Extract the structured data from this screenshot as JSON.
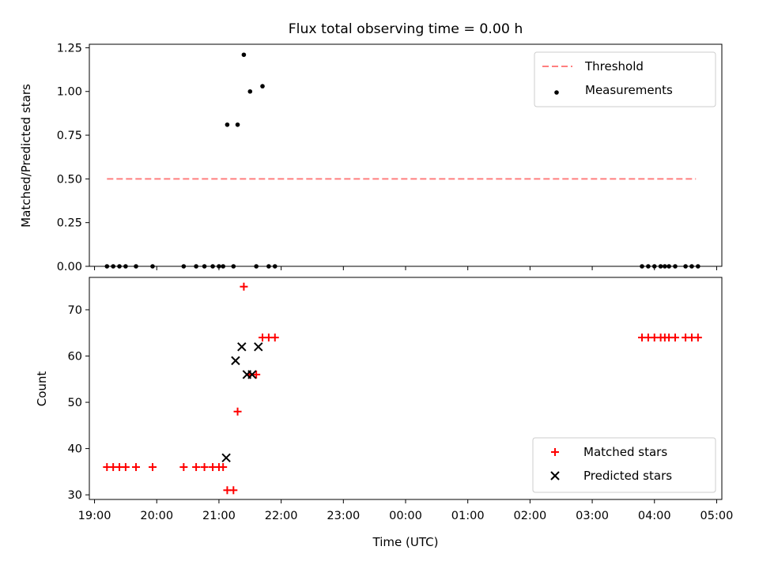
{
  "figure": {
    "title": "Flux total observing time = 0.00 h"
  },
  "chart_data": [
    {
      "type": "scatter",
      "panel": "top",
      "title": "Flux total observing time = 0.00 h",
      "xlabel": "",
      "ylabel": "Matched/Predicted stars",
      "xlim": [
        "18:55",
        "05:05"
      ],
      "ylim": [
        0,
        1.27
      ],
      "yticks": [
        "0.00",
        "0.25",
        "0.50",
        "0.75",
        "1.00",
        "1.25"
      ],
      "ytick_values": [
        0,
        0.25,
        0.5,
        0.75,
        1.0,
        1.25
      ],
      "xticks": [
        "19:00",
        "20:00",
        "21:00",
        "22:00",
        "23:00",
        "00:00",
        "01:00",
        "02:00",
        "03:00",
        "04:00",
        "05:00"
      ],
      "show_xtick_labels": false,
      "legend": "top-right",
      "series": [
        {
          "name": "Threshold",
          "kind": "line",
          "style": "dashed",
          "color": "#ff7f7f",
          "x": [
            "19:12",
            "04:40"
          ],
          "y": [
            0.5,
            0.5
          ]
        },
        {
          "name": "Measurements",
          "kind": "scatter",
          "marker": "dot",
          "color": "#000000",
          "x": [
            "19:12",
            "19:18",
            "19:24",
            "19:30",
            "19:40",
            "19:56",
            "20:26",
            "20:38",
            "20:46",
            "20:54",
            "21:00",
            "21:04",
            "21:08",
            "21:14",
            "21:18",
            "21:24",
            "21:30",
            "21:36",
            "21:42",
            "21:48",
            "21:54",
            "03:48",
            "03:54",
            "04:00",
            "04:06",
            "04:10",
            "04:14",
            "04:20",
            "04:30",
            "04:36",
            "04:42"
          ],
          "y": [
            0,
            0,
            0,
            0,
            0,
            0,
            0,
            0,
            0,
            0,
            0,
            0,
            0.81,
            0,
            0.81,
            1.21,
            1.0,
            0,
            1.03,
            0,
            0,
            0,
            0,
            0,
            0,
            0,
            0,
            0,
            0,
            0,
            0
          ]
        }
      ]
    },
    {
      "type": "scatter",
      "panel": "bottom",
      "xlabel": "Time (UTC)",
      "ylabel": "Count",
      "xlim": [
        "18:55",
        "05:05"
      ],
      "ylim": [
        29,
        77
      ],
      "yticks": [
        "30",
        "40",
        "50",
        "60",
        "70"
      ],
      "ytick_values": [
        30,
        40,
        50,
        60,
        70
      ],
      "xticks": [
        "19:00",
        "20:00",
        "21:00",
        "22:00",
        "23:00",
        "00:00",
        "01:00",
        "02:00",
        "03:00",
        "04:00",
        "05:00"
      ],
      "legend": "bottom-right",
      "series": [
        {
          "name": "Matched stars",
          "kind": "scatter",
          "marker": "plus",
          "color": "#ff0000",
          "x": [
            "19:12",
            "19:18",
            "19:24",
            "19:30",
            "19:40",
            "19:56",
            "20:26",
            "20:38",
            "20:46",
            "20:54",
            "21:00",
            "21:04",
            "21:08",
            "21:14",
            "21:18",
            "21:24",
            "21:30",
            "21:36",
            "21:42",
            "21:48",
            "21:54",
            "03:48",
            "03:54",
            "04:00",
            "04:06",
            "04:10",
            "04:14",
            "04:20",
            "04:30",
            "04:36",
            "04:42"
          ],
          "y": [
            36,
            36,
            36,
            36,
            36,
            36,
            36,
            36,
            36,
            36,
            36,
            36,
            31,
            31,
            48,
            75,
            56,
            56,
            64,
            64,
            64,
            64,
            64,
            64,
            64,
            64,
            64,
            64,
            64,
            64,
            64
          ]
        },
        {
          "name": "Predicted stars",
          "kind": "scatter",
          "marker": "x",
          "color": "#000000",
          "x": [
            "21:07",
            "21:16",
            "21:22",
            "21:27",
            "21:32",
            "21:38"
          ],
          "y": [
            38,
            59,
            62,
            56,
            56,
            62
          ]
        }
      ]
    }
  ]
}
